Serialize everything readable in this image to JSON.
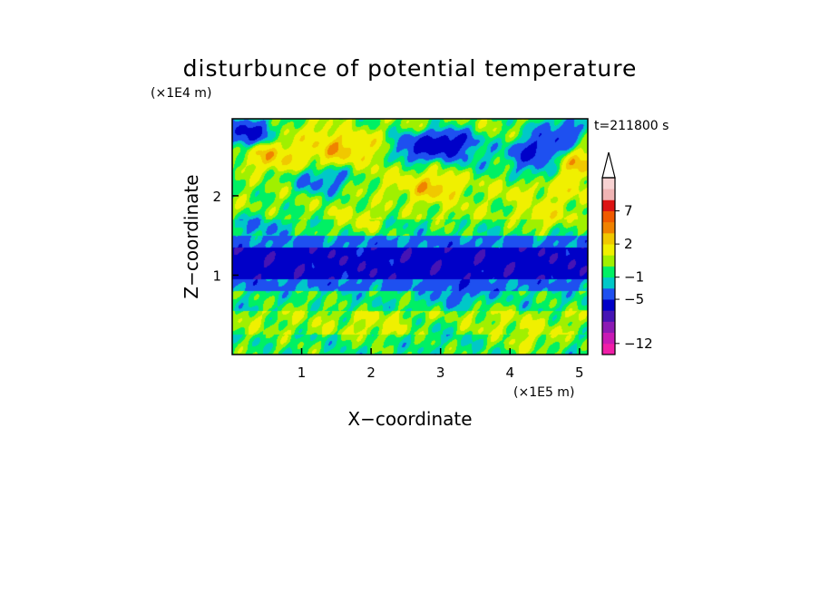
{
  "chart_data": {
    "type": "heatmap",
    "title": "disturbunce of potential temperature",
    "xlabel": "X−coordinate",
    "ylabel": "Z−coordinate",
    "x_unit": "(×1E5 m)",
    "y_unit": "(×1E4 m)",
    "time_label": "t=211800 s",
    "xlim": [
      0,
      5.12
    ],
    "ylim": [
      0,
      2.97
    ],
    "x_ticks": [
      {
        "value": 1,
        "label": "1"
      },
      {
        "value": 2,
        "label": "2"
      },
      {
        "value": 3,
        "label": "3"
      },
      {
        "value": 4,
        "label": "4"
      },
      {
        "value": 5,
        "label": "5"
      }
    ],
    "y_ticks": [
      {
        "value": 1,
        "label": "1"
      },
      {
        "value": 2,
        "label": "2"
      }
    ],
    "grid": false,
    "legend_position": "right",
    "colorbar": {
      "levels": [
        -12,
        -11,
        -9,
        -7,
        -5,
        -3,
        -1,
        0,
        1,
        2,
        4,
        5,
        7,
        9,
        11
      ],
      "colors": [
        "#f01ea8",
        "#c81ab4",
        "#8c1ab4",
        "#4614b4",
        "#0000c8",
        "#1e50f0",
        "#00c8c8",
        "#00f064",
        "#a0f000",
        "#f0f000",
        "#f0c800",
        "#f08200",
        "#f05a00",
        "#dc1414",
        "#f0b4b4",
        "#f8d2d2"
      ],
      "tick_labels": [
        {
          "value": -12,
          "label": "−12"
        },
        {
          "value": -5,
          "label": "−5"
        },
        {
          "value": -1,
          "label": "−1"
        },
        {
          "value": 2,
          "label": "2"
        },
        {
          "value": 7,
          "label": "7"
        }
      ],
      "extend": "max"
    },
    "features": [
      {
        "x": 0.2,
        "z": 2.8,
        "value": -6
      },
      {
        "x": 0.4,
        "z": 1.6,
        "value": -1.5
      },
      {
        "x": 0.6,
        "z": 2.5,
        "value": 6
      },
      {
        "x": 1.2,
        "z": 2.5,
        "value": 3
      },
      {
        "x": 1.3,
        "z": 2.2,
        "value": -3
      },
      {
        "x": 1.2,
        "z": 2.75,
        "value": 3.5
      },
      {
        "x": 1.5,
        "z": 2.6,
        "value": 7
      },
      {
        "x": 1.9,
        "z": 2.6,
        "value": 4
      },
      {
        "x": 2.3,
        "z": 2.2,
        "value": 2.5
      },
      {
        "x": 2.9,
        "z": 2.1,
        "value": 6.5
      },
      {
        "x": 3.1,
        "z": 2.65,
        "value": -8
      },
      {
        "x": 2.65,
        "z": 2.6,
        "value": -5
      },
      {
        "x": 3.5,
        "z": 2.5,
        "value": -1
      },
      {
        "x": 4.1,
        "z": 2.1,
        "value": 3
      },
      {
        "x": 4.3,
        "z": 2.3,
        "value": -2
      },
      {
        "x": 4.4,
        "z": 2.55,
        "value": -6.5
      },
      {
        "x": 4.7,
        "z": 2.8,
        "value": -4
      },
      {
        "x": 5.0,
        "z": 2.4,
        "value": 6
      },
      {
        "x": 4.8,
        "z": 2.1,
        "value": 4
      },
      {
        "x": 1.8,
        "z": 1.7,
        "value": 3
      },
      {
        "x": 3.3,
        "z": 1.8,
        "value": 2
      },
      {
        "x": 4.5,
        "z": 1.75,
        "value": 4
      },
      {
        "x": 0.5,
        "z": 0.2,
        "value": 1
      },
      {
        "x": 1.1,
        "z": 0.55,
        "value": 1.5
      },
      {
        "x": 2.1,
        "z": 0.35,
        "value": 2.5
      },
      {
        "x": 3.0,
        "z": 0.3,
        "value": 0
      },
      {
        "x": 3.8,
        "z": 0.45,
        "value": 2
      },
      {
        "x": 4.3,
        "z": 0.2,
        "value": 3
      },
      {
        "x": 4.9,
        "z": 0.4,
        "value": 1.5
      },
      {
        "x": 3.28,
        "z": 0.8,
        "value": -3
      }
    ]
  }
}
